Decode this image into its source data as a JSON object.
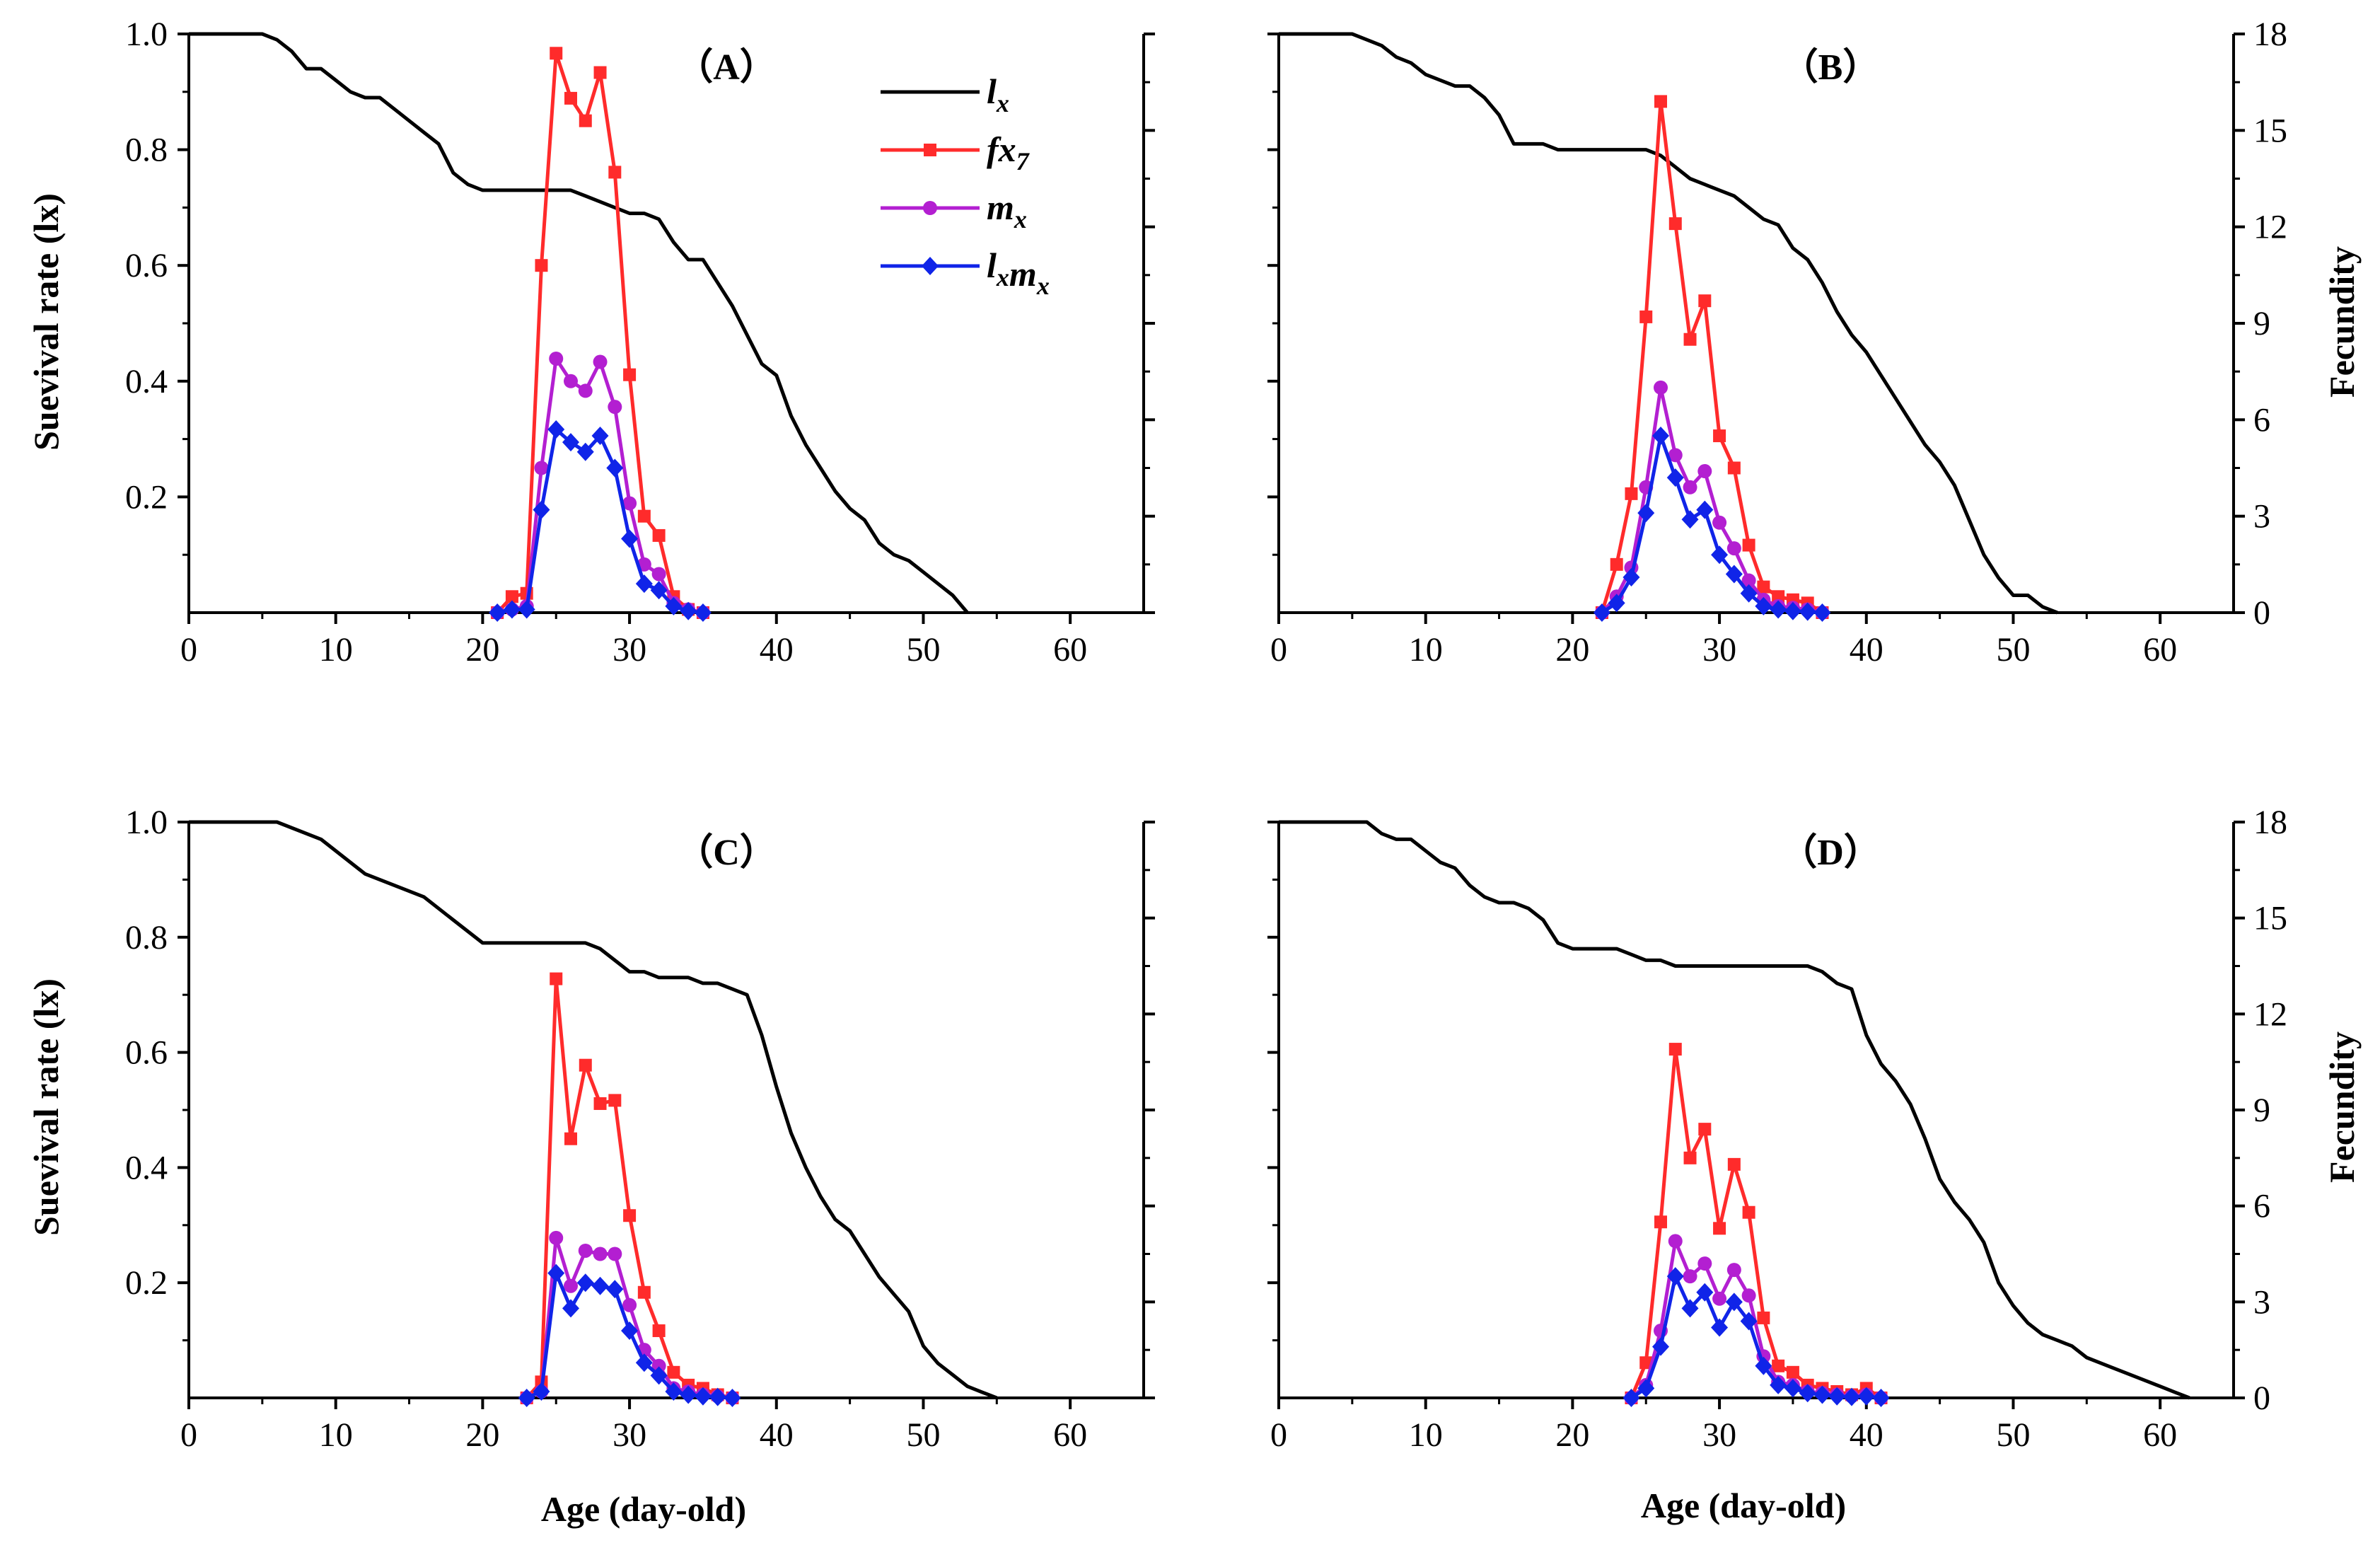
{
  "figure": {
    "xlabel": "Age (day-old)",
    "ylabel_left": "Suevival rate (lx)",
    "ylabel_right": "Fecundity"
  },
  "legend": [
    {
      "key": "lx",
      "main": "l",
      "sub": "x",
      "color": "#000000",
      "marker": "none"
    },
    {
      "key": "fx7",
      "main": "fx",
      "sub": "7",
      "color": "#ff2b2b",
      "marker": "square"
    },
    {
      "key": "mx",
      "main": "m",
      "sub": "x",
      "color": "#b31fd1",
      "marker": "circle"
    },
    {
      "key": "lxmx",
      "main": "l",
      "sub": "x",
      "main2": "m",
      "sub2": "x",
      "color": "#1024e8",
      "marker": "diamond"
    }
  ],
  "chart_data": [
    {
      "type": "line",
      "panel": "A",
      "label": "（A）",
      "xlim": [
        0,
        65
      ],
      "ylim_left": [
        0,
        1.0
      ],
      "ylim_right": [
        0,
        18
      ],
      "xticks": [
        0,
        10,
        20,
        30,
        40,
        50,
        60
      ],
      "yticks_left": [
        0.2,
        0.4,
        0.6,
        0.8,
        1.0
      ],
      "yticks_left_labels": [
        "0.2",
        "0.4",
        "0.6",
        "0.8",
        "1.0"
      ],
      "yticks_right": [
        0,
        3,
        6,
        9,
        12,
        15,
        18
      ],
      "show_left_ticklabels": true,
      "show_right_ticklabels": false,
      "show_xlabel": false,
      "show_legend": true,
      "lx": {
        "x": [
          0,
          5,
          6,
          7,
          8,
          9,
          10,
          11,
          12,
          13,
          14,
          15,
          16,
          17,
          18,
          19,
          20,
          21,
          22,
          23,
          24,
          25,
          26,
          27,
          28,
          29,
          30,
          31,
          32,
          33,
          34,
          35,
          36,
          37,
          38,
          39,
          40,
          41,
          42,
          43,
          44,
          45,
          46,
          47,
          48,
          49,
          50,
          51,
          52,
          53
        ],
        "y": [
          1.0,
          1.0,
          0.99,
          0.97,
          0.94,
          0.94,
          0.92,
          0.9,
          0.89,
          0.89,
          0.87,
          0.85,
          0.83,
          0.81,
          0.76,
          0.74,
          0.73,
          0.73,
          0.73,
          0.73,
          0.73,
          0.73,
          0.73,
          0.72,
          0.71,
          0.7,
          0.69,
          0.69,
          0.68,
          0.64,
          0.61,
          0.61,
          0.57,
          0.53,
          0.48,
          0.43,
          0.41,
          0.34,
          0.29,
          0.25,
          0.21,
          0.18,
          0.16,
          0.12,
          0.1,
          0.09,
          0.07,
          0.05,
          0.03,
          0.0
        ]
      },
      "fx7": {
        "x": [
          21,
          22,
          23,
          24,
          25,
          26,
          27,
          28,
          29,
          30,
          31,
          32,
          33,
          34,
          35
        ],
        "y": [
          0,
          0.5,
          0.6,
          10.8,
          17.4,
          16.0,
          15.3,
          16.8,
          13.7,
          7.4,
          3.0,
          2.4,
          0.5,
          0.1,
          0
        ]
      },
      "mx": {
        "x": [
          21,
          22,
          23,
          24,
          25,
          26,
          27,
          28,
          29,
          30,
          31,
          32,
          33,
          34,
          35
        ],
        "y": [
          0,
          0.1,
          0.2,
          4.5,
          7.9,
          7.2,
          6.9,
          7.8,
          6.4,
          3.4,
          1.5,
          1.2,
          0.3,
          0.1,
          0
        ]
      },
      "lxmx": {
        "x": [
          21,
          22,
          23,
          24,
          25,
          26,
          27,
          28,
          29,
          30,
          31,
          32,
          33,
          34,
          35
        ],
        "y": [
          0,
          0.1,
          0.1,
          3.2,
          5.7,
          5.3,
          5.0,
          5.5,
          4.5,
          2.3,
          0.9,
          0.7,
          0.2,
          0.05,
          0
        ]
      }
    },
    {
      "type": "line",
      "panel": "B",
      "label": "（B）",
      "xlim": [
        0,
        65
      ],
      "ylim_left": [
        0,
        1.0
      ],
      "ylim_right": [
        0,
        18
      ],
      "xticks": [
        0,
        10,
        20,
        30,
        40,
        50,
        60
      ],
      "yticks_left": [
        0.2,
        0.4,
        0.6,
        0.8,
        1.0
      ],
      "yticks_right": [
        0,
        3,
        6,
        9,
        12,
        15,
        18
      ],
      "yticks_right_labels": [
        "0",
        "3",
        "6",
        "9",
        "12",
        "15",
        "18"
      ],
      "show_left_ticklabels": false,
      "show_right_ticklabels": true,
      "show_xlabel": false,
      "show_legend": false,
      "lx": {
        "x": [
          0,
          5,
          6,
          7,
          8,
          9,
          10,
          11,
          12,
          13,
          14,
          15,
          16,
          17,
          18,
          19,
          20,
          21,
          22,
          23,
          24,
          25,
          26,
          27,
          28,
          29,
          30,
          31,
          32,
          33,
          34,
          35,
          36,
          37,
          38,
          39,
          40,
          41,
          42,
          43,
          44,
          45,
          46,
          47,
          48,
          49,
          50,
          51,
          52,
          53
        ],
        "y": [
          1.0,
          1.0,
          0.99,
          0.98,
          0.96,
          0.95,
          0.93,
          0.92,
          0.91,
          0.91,
          0.89,
          0.86,
          0.81,
          0.81,
          0.81,
          0.8,
          0.8,
          0.8,
          0.8,
          0.8,
          0.8,
          0.8,
          0.79,
          0.77,
          0.75,
          0.74,
          0.73,
          0.72,
          0.7,
          0.68,
          0.67,
          0.63,
          0.61,
          0.57,
          0.52,
          0.48,
          0.45,
          0.41,
          0.37,
          0.33,
          0.29,
          0.26,
          0.22,
          0.16,
          0.1,
          0.06,
          0.03,
          0.03,
          0.01,
          0.0
        ]
      },
      "fx7": {
        "x": [
          22,
          23,
          24,
          25,
          26,
          27,
          28,
          29,
          30,
          31,
          32,
          33,
          34,
          35,
          36,
          37
        ],
        "y": [
          0,
          1.5,
          3.7,
          9.2,
          15.9,
          12.1,
          8.5,
          9.7,
          5.5,
          4.5,
          2.1,
          0.8,
          0.5,
          0.4,
          0.3,
          0
        ]
      },
      "mx": {
        "x": [
          22,
          23,
          24,
          25,
          26,
          27,
          28,
          29,
          30,
          31,
          32,
          33,
          34,
          35,
          36,
          37
        ],
        "y": [
          0,
          0.5,
          1.4,
          3.9,
          7.0,
          4.9,
          3.9,
          4.4,
          2.8,
          2.0,
          1.0,
          0.4,
          0.2,
          0.15,
          0.1,
          0
        ]
      },
      "lxmx": {
        "x": [
          22,
          23,
          24,
          25,
          26,
          27,
          28,
          29,
          30,
          31,
          32,
          33,
          34,
          35,
          36,
          37
        ],
        "y": [
          0,
          0.3,
          1.1,
          3.1,
          5.5,
          4.2,
          2.9,
          3.2,
          1.8,
          1.2,
          0.6,
          0.2,
          0.1,
          0.05,
          0.03,
          0
        ]
      }
    },
    {
      "type": "line",
      "panel": "C",
      "label": "（C）",
      "xlim": [
        0,
        65
      ],
      "ylim_left": [
        0,
        1.0
      ],
      "ylim_right": [
        0,
        18
      ],
      "xticks": [
        0,
        10,
        20,
        30,
        40,
        50,
        60
      ],
      "yticks_left": [
        0.2,
        0.4,
        0.6,
        0.8,
        1.0
      ],
      "yticks_left_labels": [
        "0.2",
        "0.4",
        "0.6",
        "0.8",
        "1.0"
      ],
      "yticks_right": [
        0,
        3,
        6,
        9,
        12,
        15,
        18
      ],
      "show_left_ticklabels": true,
      "show_right_ticklabels": false,
      "show_xlabel": true,
      "show_legend": false,
      "lx": {
        "x": [
          0,
          6,
          9,
          12,
          16,
          18,
          20,
          22,
          24,
          26,
          27,
          28,
          29,
          30,
          31,
          32,
          33,
          34,
          35,
          36,
          37,
          38,
          39,
          40,
          41,
          42,
          43,
          44,
          45,
          46,
          47,
          48,
          49,
          50,
          51,
          52,
          53,
          54,
          55
        ],
        "y": [
          1.0,
          1.0,
          0.97,
          0.91,
          0.87,
          0.83,
          0.79,
          0.79,
          0.79,
          0.79,
          0.79,
          0.78,
          0.76,
          0.74,
          0.74,
          0.73,
          0.73,
          0.73,
          0.72,
          0.72,
          0.71,
          0.7,
          0.63,
          0.54,
          0.46,
          0.4,
          0.35,
          0.31,
          0.29,
          0.25,
          0.21,
          0.18,
          0.15,
          0.09,
          0.06,
          0.04,
          0.02,
          0.01,
          0.0
        ]
      },
      "fx7": {
        "x": [
          23,
          24,
          25,
          26,
          27,
          28,
          29,
          30,
          31,
          32,
          33,
          34,
          35,
          36,
          37
        ],
        "y": [
          0,
          0.5,
          13.1,
          8.1,
          10.4,
          9.2,
          9.3,
          5.7,
          3.3,
          2.1,
          0.8,
          0.4,
          0.3,
          0.1,
          0
        ]
      },
      "mx": {
        "x": [
          23,
          24,
          25,
          26,
          27,
          28,
          29,
          30,
          31,
          32,
          33,
          34,
          35,
          36,
          37
        ],
        "y": [
          0,
          0.2,
          5.0,
          3.5,
          4.6,
          4.5,
          4.5,
          2.9,
          1.5,
          1.0,
          0.3,
          0.2,
          0.1,
          0.05,
          0
        ]
      },
      "lxmx": {
        "x": [
          23,
          24,
          25,
          26,
          27,
          28,
          29,
          30,
          31,
          32,
          33,
          34,
          35,
          36,
          37
        ],
        "y": [
          0,
          0.2,
          3.9,
          2.8,
          3.6,
          3.5,
          3.4,
          2.1,
          1.1,
          0.7,
          0.2,
          0.1,
          0.05,
          0.03,
          0
        ]
      }
    },
    {
      "type": "line",
      "panel": "D",
      "label": "（D）",
      "xlim": [
        0,
        65
      ],
      "ylim_left": [
        0,
        1.0
      ],
      "ylim_right": [
        0,
        18
      ],
      "xticks": [
        0,
        10,
        20,
        30,
        40,
        50,
        60
      ],
      "yticks_left": [
        0.2,
        0.4,
        0.6,
        0.8,
        1.0
      ],
      "yticks_right": [
        0,
        3,
        6,
        9,
        12,
        15,
        18
      ],
      "yticks_right_labels": [
        "0",
        "3",
        "6",
        "9",
        "12",
        "15",
        "18"
      ],
      "show_left_ticklabels": false,
      "show_right_ticklabels": true,
      "show_xlabel": true,
      "show_legend": false,
      "lx": {
        "x": [
          0,
          6,
          7,
          8,
          9,
          10,
          11,
          12,
          13,
          14,
          15,
          16,
          17,
          18,
          19,
          20,
          21,
          22,
          23,
          24,
          25,
          26,
          27,
          28,
          29,
          30,
          31,
          32,
          33,
          34,
          35,
          36,
          37,
          38,
          39,
          40,
          41,
          42,
          43,
          44,
          45,
          46,
          47,
          48,
          49,
          50,
          51,
          52,
          53,
          54,
          55,
          56,
          57,
          58,
          59,
          60,
          61,
          62
        ],
        "y": [
          1.0,
          1.0,
          0.98,
          0.97,
          0.97,
          0.95,
          0.93,
          0.92,
          0.89,
          0.87,
          0.86,
          0.86,
          0.85,
          0.83,
          0.79,
          0.78,
          0.78,
          0.78,
          0.78,
          0.77,
          0.76,
          0.76,
          0.75,
          0.75,
          0.75,
          0.75,
          0.75,
          0.75,
          0.75,
          0.75,
          0.75,
          0.75,
          0.74,
          0.72,
          0.71,
          0.63,
          0.58,
          0.55,
          0.51,
          0.45,
          0.38,
          0.34,
          0.31,
          0.27,
          0.2,
          0.16,
          0.13,
          0.11,
          0.1,
          0.09,
          0.07,
          0.06,
          0.05,
          0.04,
          0.03,
          0.02,
          0.01,
          0.0
        ]
      },
      "fx7": {
        "x": [
          24,
          25,
          26,
          27,
          28,
          29,
          30,
          31,
          32,
          33,
          34,
          35,
          36,
          37,
          38,
          39,
          40,
          41
        ],
        "y": [
          0,
          1.1,
          5.5,
          10.9,
          7.5,
          8.4,
          5.3,
          7.3,
          5.8,
          2.5,
          1.0,
          0.8,
          0.4,
          0.3,
          0.2,
          0.1,
          0.3,
          0
        ]
      },
      "mx": {
        "x": [
          24,
          25,
          26,
          27,
          28,
          29,
          30,
          31,
          32,
          33,
          34,
          35,
          36,
          37,
          38,
          39,
          40,
          41
        ],
        "y": [
          0,
          0.4,
          2.1,
          4.9,
          3.8,
          4.2,
          3.1,
          4.0,
          3.2,
          1.3,
          0.5,
          0.4,
          0.2,
          0.15,
          0.1,
          0.05,
          0.1,
          0
        ]
      },
      "lxmx": {
        "x": [
          24,
          25,
          26,
          27,
          28,
          29,
          30,
          31,
          32,
          33,
          34,
          35,
          36,
          37,
          38,
          39,
          40,
          41
        ],
        "y": [
          0,
          0.3,
          1.6,
          3.8,
          2.8,
          3.3,
          2.2,
          3.0,
          2.4,
          1.0,
          0.4,
          0.3,
          0.15,
          0.1,
          0.05,
          0.03,
          0.05,
          0
        ]
      }
    }
  ]
}
